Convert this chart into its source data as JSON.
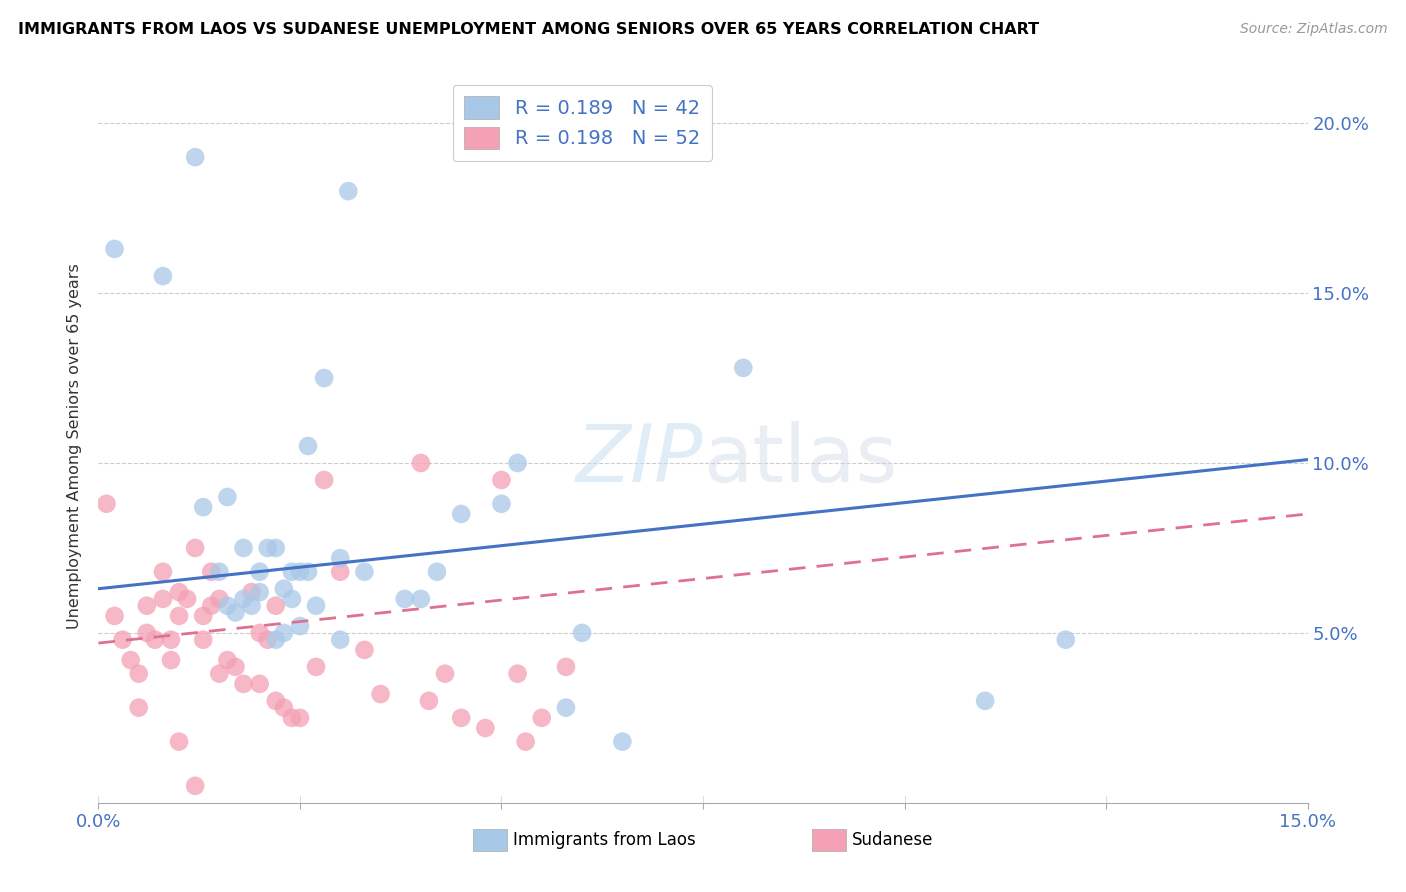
{
  "title": "IMMIGRANTS FROM LAOS VS SUDANESE UNEMPLOYMENT AMONG SENIORS OVER 65 YEARS CORRELATION CHART",
  "source": "Source: ZipAtlas.com",
  "ylabel": "Unemployment Among Seniors over 65 years",
  "x_min": 0.0,
  "x_max": 0.15,
  "y_min": 0.0,
  "y_max": 0.21,
  "yticks": [
    0.05,
    0.1,
    0.15,
    0.2
  ],
  "ytick_labels": [
    "5.0%",
    "10.0%",
    "15.0%",
    "20.0%"
  ],
  "legend_r1": "R = 0.189",
  "legend_n1": "N = 42",
  "legend_r2": "R = 0.198",
  "legend_n2": "N = 52",
  "color_blue": "#a8c8e8",
  "color_pink": "#f4a0b5",
  "color_blue_line": "#4472c4",
  "color_pink_line": "#e07090",
  "watermark_color": "#d8e8f0",
  "laos_x": [
    0.002,
    0.008,
    0.013,
    0.015,
    0.016,
    0.016,
    0.017,
    0.018,
    0.018,
    0.019,
    0.02,
    0.02,
    0.021,
    0.022,
    0.022,
    0.023,
    0.023,
    0.024,
    0.024,
    0.025,
    0.025,
    0.026,
    0.026,
    0.027,
    0.028,
    0.03,
    0.03,
    0.031,
    0.033,
    0.038,
    0.04,
    0.042,
    0.045,
    0.05,
    0.052,
    0.058,
    0.06,
    0.065,
    0.08,
    0.11,
    0.12,
    0.012
  ],
  "laos_y": [
    0.163,
    0.155,
    0.087,
    0.068,
    0.09,
    0.058,
    0.056,
    0.06,
    0.075,
    0.058,
    0.068,
    0.062,
    0.075,
    0.075,
    0.048,
    0.05,
    0.063,
    0.068,
    0.06,
    0.052,
    0.068,
    0.105,
    0.068,
    0.058,
    0.125,
    0.048,
    0.072,
    0.18,
    0.068,
    0.06,
    0.06,
    0.068,
    0.085,
    0.088,
    0.1,
    0.028,
    0.05,
    0.018,
    0.128,
    0.03,
    0.048,
    0.19
  ],
  "sudanese_x": [
    0.001,
    0.002,
    0.003,
    0.004,
    0.005,
    0.005,
    0.006,
    0.006,
    0.007,
    0.008,
    0.008,
    0.009,
    0.009,
    0.01,
    0.01,
    0.011,
    0.012,
    0.013,
    0.013,
    0.014,
    0.014,
    0.015,
    0.015,
    0.016,
    0.017,
    0.018,
    0.019,
    0.02,
    0.02,
    0.021,
    0.022,
    0.022,
    0.023,
    0.024,
    0.025,
    0.027,
    0.028,
    0.03,
    0.033,
    0.035,
    0.04,
    0.041,
    0.043,
    0.045,
    0.048,
    0.05,
    0.052,
    0.053,
    0.055,
    0.058,
    0.01,
    0.012
  ],
  "sudanese_y": [
    0.088,
    0.055,
    0.048,
    0.042,
    0.038,
    0.028,
    0.058,
    0.05,
    0.048,
    0.06,
    0.068,
    0.048,
    0.042,
    0.055,
    0.062,
    0.06,
    0.075,
    0.055,
    0.048,
    0.068,
    0.058,
    0.06,
    0.038,
    0.042,
    0.04,
    0.035,
    0.062,
    0.035,
    0.05,
    0.048,
    0.058,
    0.03,
    0.028,
    0.025,
    0.025,
    0.04,
    0.095,
    0.068,
    0.045,
    0.032,
    0.1,
    0.03,
    0.038,
    0.025,
    0.022,
    0.095,
    0.038,
    0.018,
    0.025,
    0.04,
    0.018,
    0.005
  ],
  "laos_trendline_start_y": 0.063,
  "laos_trendline_end_y": 0.101,
  "sudanese_trendline_start_y": 0.047,
  "sudanese_trendline_end_y": 0.085
}
